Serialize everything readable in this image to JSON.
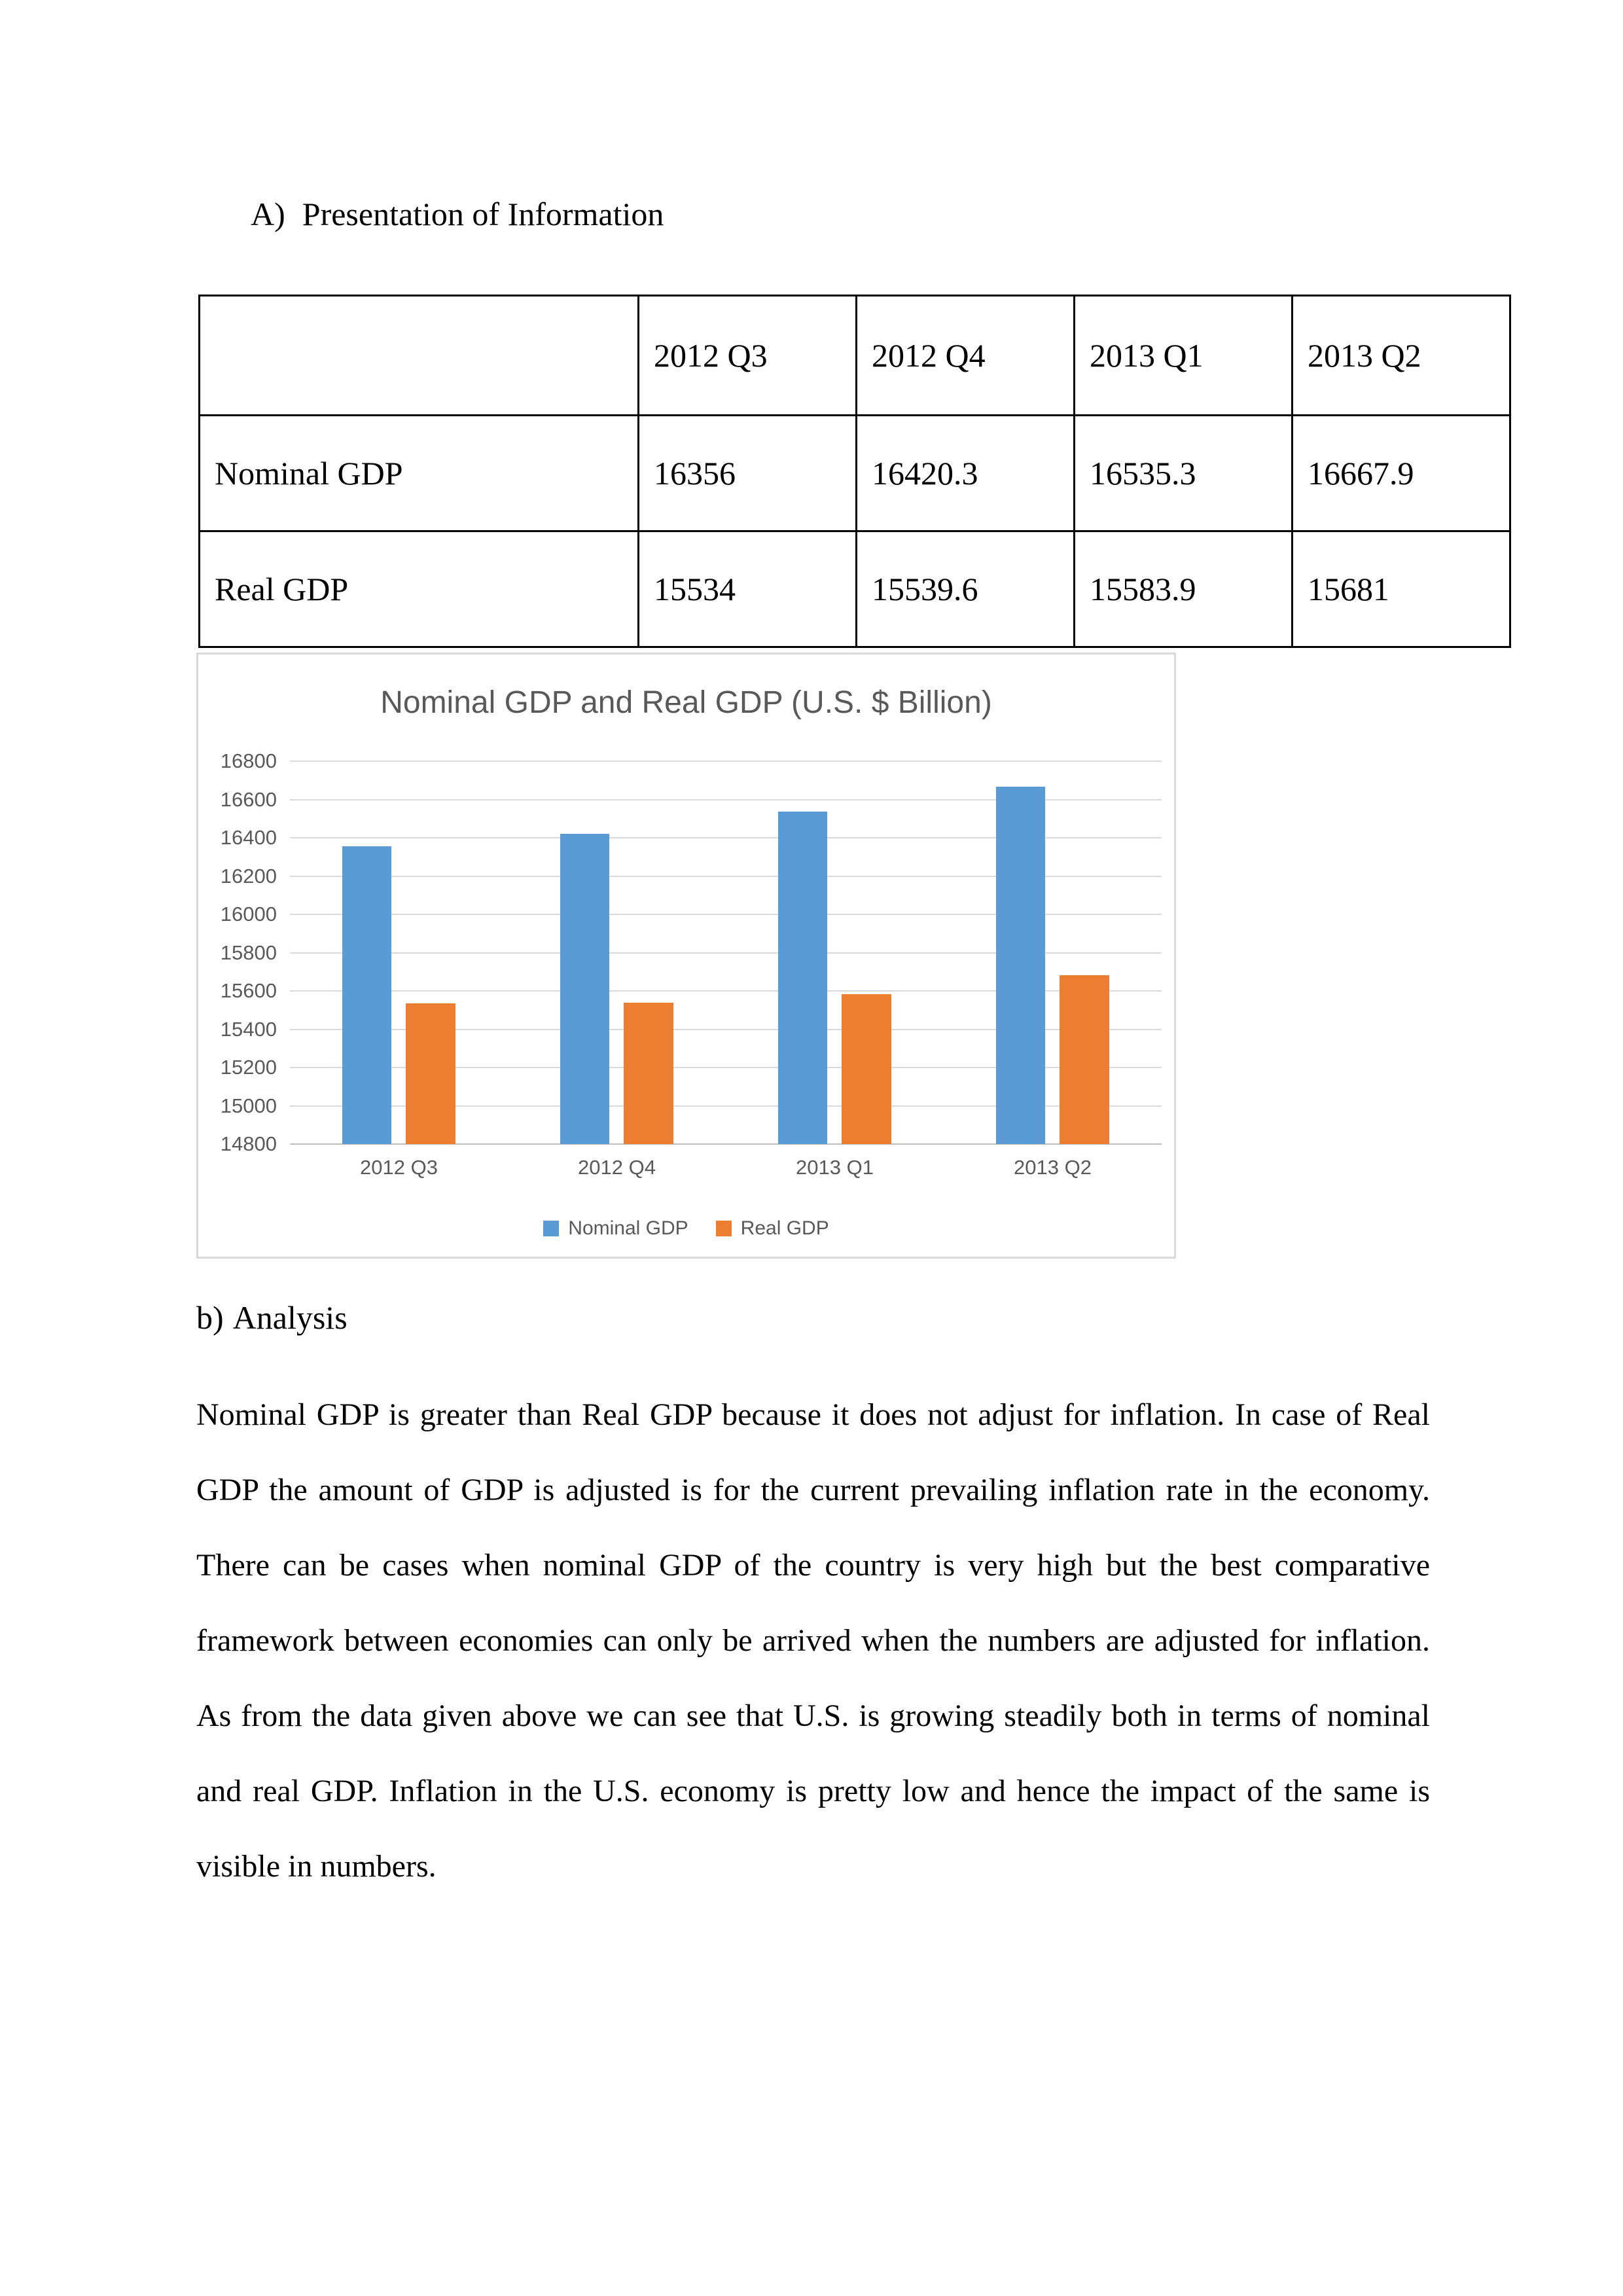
{
  "section_a": {
    "marker": "A)",
    "title": "Presentation of Information"
  },
  "table": {
    "columns": [
      "",
      "2012 Q3",
      "2012 Q4",
      "2013 Q1",
      "2013 Q2"
    ],
    "rows": [
      {
        "label": "Nominal GDP",
        "values": [
          "16356",
          "16420.3",
          "16535.3",
          "16667.9"
        ]
      },
      {
        "label": "Real GDP",
        "values": [
          "15534",
          "15539.6",
          "15583.9",
          "15681"
        ]
      }
    ]
  },
  "chart_data": {
    "type": "bar",
    "title": "Nominal GDP and Real GDP (U.S. $ Billion)",
    "categories": [
      "2012 Q3",
      "2012 Q4",
      "2013 Q1",
      "2013 Q2"
    ],
    "series": [
      {
        "name": "Nominal GDP",
        "color": "#5B9BD5",
        "values": [
          16356,
          16420.3,
          16535.3,
          16667.9
        ]
      },
      {
        "name": "Real GDP",
        "color": "#ED7D31",
        "values": [
          15534,
          15539.6,
          15583.9,
          15681
        ]
      }
    ],
    "ylabel": "",
    "xlabel": "",
    "ylim": [
      14800,
      16800
    ],
    "ytick_step": 200,
    "grid": true,
    "legend_position": "bottom",
    "text_color": "#595959",
    "gridline_color": "#D9D9D9",
    "axis_color": "#BFBFBF"
  },
  "section_b": {
    "marker": "b)",
    "title": "Analysis"
  },
  "analysis": {
    "lines": [
      "Nominal GDP is greater than Real GDP because it does not adjust for inflation. In case of Real",
      "GDP the amount of GDP is adjusted is for the current prevailing inflation rate in the economy.",
      "There can be cases when nominal GDP of the country is very high but the best comparative",
      "framework between economies can only be arrived when the numbers are adjusted for inflation.",
      "As from the data given above we can see that U.S. is growing steadily both in terms of nominal",
      "and real GDP. Inflation in the U.S. economy is pretty low and hence the impact of the same is",
      "visible in numbers."
    ]
  }
}
